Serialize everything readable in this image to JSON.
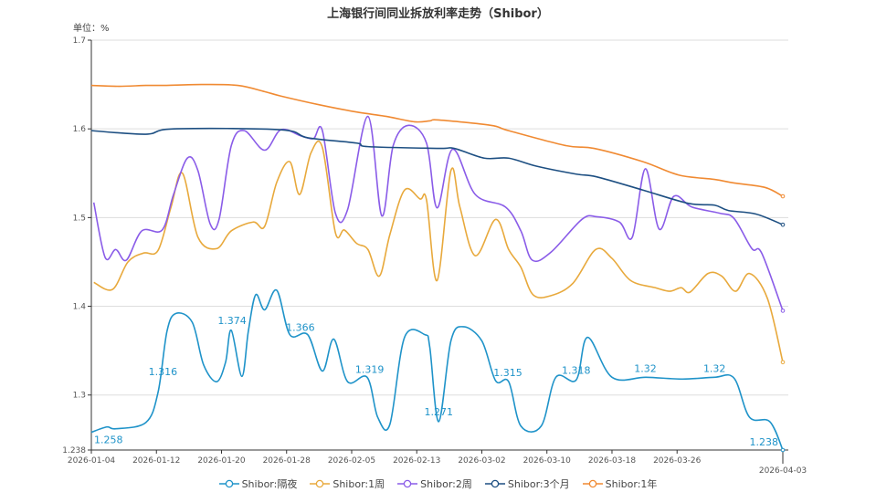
{
  "chart_data": {
    "type": "line",
    "title": "上海银行间同业拆放利率走势（Shibor）",
    "ylabel": "单位：%",
    "xlabel": "",
    "ylim": [
      1.238,
      1.7
    ],
    "yticks": [
      "1.238",
      "1.3",
      "1.4",
      "1.5",
      "1.6",
      "1.7"
    ],
    "ytick_values": [
      1.238,
      1.3,
      1.4,
      1.5,
      1.6,
      1.7
    ],
    "grid": true,
    "legend_position": "bottom",
    "x_category_count": 86,
    "x_note": "x values are category indices (0 = 2026-01-04, 85 = 2026-04-03)",
    "xticks": [
      {
        "i": 0,
        "label": "2026-01-04"
      },
      {
        "i": 8,
        "label": "2026-01-12"
      },
      {
        "i": 16,
        "label": "2026-01-20"
      },
      {
        "i": 24,
        "label": "2026-01-28"
      },
      {
        "i": 32,
        "label": "2026-02-05"
      },
      {
        "i": 40,
        "label": "2026-02-13"
      },
      {
        "i": 48,
        "label": "2026-03-02"
      },
      {
        "i": 56,
        "label": "2026-03-10"
      },
      {
        "i": 64,
        "label": "2026-03-18"
      },
      {
        "i": 72,
        "label": "2026-03-26"
      },
      {
        "i": 85,
        "label": "2026-04-03"
      }
    ],
    "series": [
      {
        "name": "Shibor:隔夜",
        "color": "#1f93c9",
        "points": [
          [
            0,
            1.258
          ],
          [
            1.9,
            1.264
          ],
          [
            3,
            1.262
          ],
          [
            6.7,
            1.269
          ],
          [
            8.2,
            1.303
          ],
          [
            9.3,
            1.372
          ],
          [
            10.4,
            1.392
          ],
          [
            12.4,
            1.382
          ],
          [
            13.8,
            1.334
          ],
          [
            15.4,
            1.315
          ],
          [
            16.5,
            1.337
          ],
          [
            17.2,
            1.373
          ],
          [
            18.5,
            1.321
          ],
          [
            19.3,
            1.372
          ],
          [
            20.2,
            1.413
          ],
          [
            21.3,
            1.396
          ],
          [
            22.8,
            1.418
          ],
          [
            24.4,
            1.368
          ],
          [
            26.6,
            1.368
          ],
          [
            28.4,
            1.327
          ],
          [
            29.8,
            1.363
          ],
          [
            31.5,
            1.315
          ],
          [
            33.9,
            1.32
          ],
          [
            35.2,
            1.275
          ],
          [
            36.7,
            1.267
          ],
          [
            38.5,
            1.365
          ],
          [
            41,
            1.368
          ],
          [
            41.6,
            1.354
          ],
          [
            42.7,
            1.27
          ],
          [
            44.2,
            1.361
          ],
          [
            45.7,
            1.377
          ],
          [
            48,
            1.361
          ],
          [
            49.7,
            1.316
          ],
          [
            51.3,
            1.315
          ],
          [
            52.8,
            1.265
          ],
          [
            55.3,
            1.265
          ],
          [
            57.1,
            1.32
          ],
          [
            59.6,
            1.317
          ],
          [
            61,
            1.365
          ],
          [
            64,
            1.32
          ],
          [
            68.2,
            1.32
          ],
          [
            72.7,
            1.318
          ],
          [
            76.6,
            1.32
          ],
          [
            79,
            1.319
          ],
          [
            80.9,
            1.275
          ],
          [
            83.4,
            1.27
          ],
          [
            85,
            1.238
          ]
        ],
        "labels": [
          [
            0,
            1.258
          ],
          [
            8.8,
            1.316
          ],
          [
            17.3,
            1.374
          ],
          [
            25.7,
            1.366
          ],
          [
            34.2,
            1.319
          ],
          [
            42.7,
            1.271
          ],
          [
            51.2,
            1.315
          ],
          [
            59.6,
            1.318
          ],
          [
            68.1,
            1.32
          ],
          [
            76.6,
            1.32
          ],
          [
            85,
            1.238
          ]
        ]
      },
      {
        "name": "Shibor:1周",
        "color": "#e8a93c",
        "points": [
          [
            0.3,
            1.427
          ],
          [
            2.6,
            1.419
          ],
          [
            4.5,
            1.45
          ],
          [
            6.4,
            1.46
          ],
          [
            8.2,
            1.463
          ],
          [
            9.8,
            1.512
          ],
          [
            11.2,
            1.55
          ],
          [
            13.1,
            1.478
          ],
          [
            15.4,
            1.465
          ],
          [
            17.2,
            1.485
          ],
          [
            19.9,
            1.495
          ],
          [
            21.3,
            1.49
          ],
          [
            22.8,
            1.54
          ],
          [
            24.4,
            1.563
          ],
          [
            25.6,
            1.526
          ],
          [
            27,
            1.573
          ],
          [
            28.4,
            1.579
          ],
          [
            30,
            1.483
          ],
          [
            31.1,
            1.486
          ],
          [
            32.6,
            1.471
          ],
          [
            34,
            1.464
          ],
          [
            35.4,
            1.434
          ],
          [
            36.7,
            1.481
          ],
          [
            38.5,
            1.531
          ],
          [
            40.4,
            1.521
          ],
          [
            41.2,
            1.52
          ],
          [
            42.5,
            1.429
          ],
          [
            44.2,
            1.553
          ],
          [
            45.3,
            1.512
          ],
          [
            47.2,
            1.457
          ],
          [
            49.7,
            1.498
          ],
          [
            51.3,
            1.464
          ],
          [
            52.8,
            1.444
          ],
          [
            54.3,
            1.413
          ],
          [
            56.5,
            1.412
          ],
          [
            59.2,
            1.426
          ],
          [
            62,
            1.464
          ],
          [
            64,
            1.454
          ],
          [
            66.3,
            1.429
          ],
          [
            69.3,
            1.421
          ],
          [
            71.1,
            1.417
          ],
          [
            72.5,
            1.421
          ],
          [
            73.6,
            1.416
          ],
          [
            75.8,
            1.437
          ],
          [
            77.5,
            1.434
          ],
          [
            79.2,
            1.417
          ],
          [
            80.9,
            1.437
          ],
          [
            83.1,
            1.409
          ],
          [
            85,
            1.337
          ]
        ]
      },
      {
        "name": "Shibor:2周",
        "color": "#8a5ce8",
        "points": [
          [
            0.3,
            1.517
          ],
          [
            1.7,
            1.455
          ],
          [
            3,
            1.464
          ],
          [
            4.3,
            1.452
          ],
          [
            6.2,
            1.485
          ],
          [
            8.7,
            1.486
          ],
          [
            10.1,
            1.526
          ],
          [
            11.8,
            1.567
          ],
          [
            13.1,
            1.553
          ],
          [
            14.6,
            1.493
          ],
          [
            15.7,
            1.498
          ],
          [
            17.2,
            1.581
          ],
          [
            18.8,
            1.598
          ],
          [
            21.3,
            1.576
          ],
          [
            23.3,
            1.599
          ],
          [
            25.8,
            1.592
          ],
          [
            27.3,
            1.589
          ],
          [
            28.4,
            1.598
          ],
          [
            30,
            1.505
          ],
          [
            31.5,
            1.509
          ],
          [
            34,
            1.614
          ],
          [
            35.7,
            1.502
          ],
          [
            37.1,
            1.581
          ],
          [
            39,
            1.604
          ],
          [
            41.2,
            1.584
          ],
          [
            42.5,
            1.511
          ],
          [
            44.4,
            1.577
          ],
          [
            47.2,
            1.526
          ],
          [
            50.9,
            1.512
          ],
          [
            52.8,
            1.485
          ],
          [
            54.2,
            1.452
          ],
          [
            56.5,
            1.461
          ],
          [
            60.3,
            1.498
          ],
          [
            62.1,
            1.501
          ],
          [
            64.9,
            1.495
          ],
          [
            66.5,
            1.478
          ],
          [
            68.1,
            1.555
          ],
          [
            69.8,
            1.487
          ],
          [
            71.6,
            1.524
          ],
          [
            73.8,
            1.512
          ],
          [
            77.2,
            1.505
          ],
          [
            79,
            1.499
          ],
          [
            81.2,
            1.465
          ],
          [
            82.4,
            1.46
          ],
          [
            85,
            1.395
          ]
        ]
      },
      {
        "name": "Shibor:3个月",
        "color": "#1d4f82",
        "points": [
          [
            0,
            1.598
          ],
          [
            6.7,
            1.594
          ],
          [
            10.1,
            1.6
          ],
          [
            23.3,
            1.599
          ],
          [
            26.6,
            1.59
          ],
          [
            32.6,
            1.584
          ],
          [
            34,
            1.58
          ],
          [
            42.7,
            1.578
          ],
          [
            44.6,
            1.578
          ],
          [
            48.3,
            1.567
          ],
          [
            51.3,
            1.567
          ],
          [
            54.7,
            1.558
          ],
          [
            59.6,
            1.549
          ],
          [
            62.1,
            1.546
          ],
          [
            67.8,
            1.531
          ],
          [
            73.4,
            1.516
          ],
          [
            76.6,
            1.514
          ],
          [
            78.3,
            1.508
          ],
          [
            81.7,
            1.504
          ],
          [
            85,
            1.492
          ]
        ]
      },
      {
        "name": "Shibor:1年",
        "color": "#f08a32",
        "points": [
          [
            0,
            1.649
          ],
          [
            3.4,
            1.648
          ],
          [
            6.7,
            1.649
          ],
          [
            9,
            1.649
          ],
          [
            13.5,
            1.65
          ],
          [
            18,
            1.649
          ],
          [
            21.3,
            1.642
          ],
          [
            23.3,
            1.637
          ],
          [
            28.1,
            1.627
          ],
          [
            32.6,
            1.619
          ],
          [
            36.3,
            1.614
          ],
          [
            39.7,
            1.608
          ],
          [
            41.6,
            1.609
          ],
          [
            42.7,
            1.61
          ],
          [
            49.1,
            1.604
          ],
          [
            51.3,
            1.598
          ],
          [
            58.4,
            1.581
          ],
          [
            61.8,
            1.578
          ],
          [
            67.8,
            1.563
          ],
          [
            72.2,
            1.548
          ],
          [
            76.6,
            1.543
          ],
          [
            79,
            1.539
          ],
          [
            82.8,
            1.534
          ],
          [
            85,
            1.524
          ]
        ]
      }
    ]
  }
}
